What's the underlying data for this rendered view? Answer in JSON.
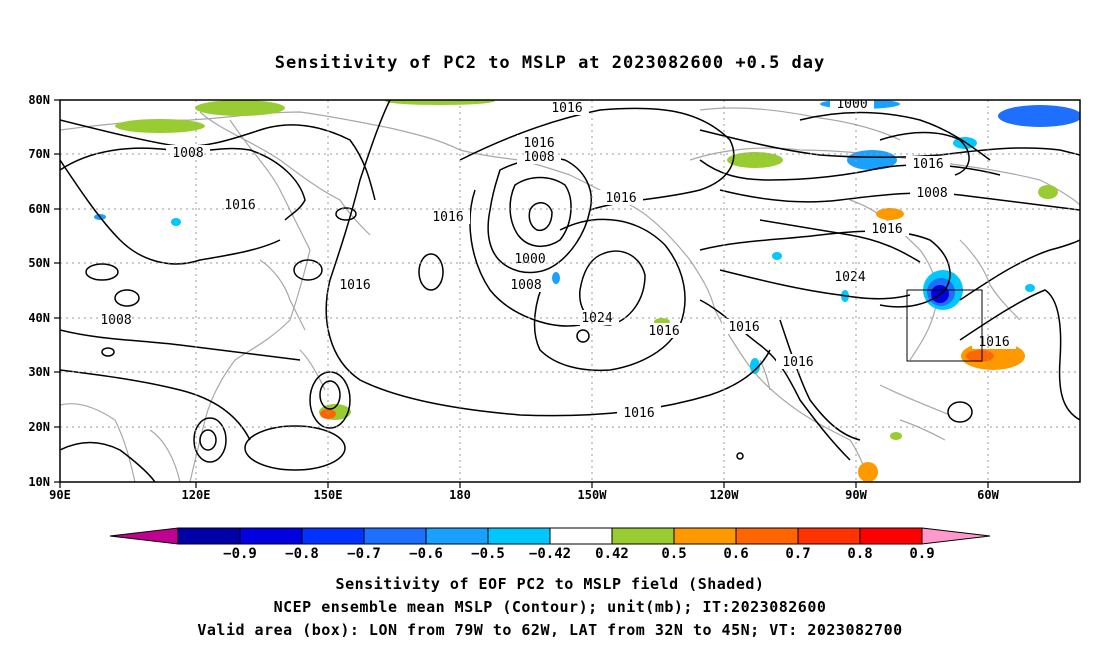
{
  "title": "Sensitivity of PC2 to MSLP at 2023082600 +0.5 day",
  "map": {
    "lon_labels": [
      "90E",
      "120E",
      "150E",
      "180",
      "150W",
      "120W",
      "90W",
      "60W"
    ],
    "lat_labels": [
      "80N",
      "70N",
      "60N",
      "50N",
      "40N",
      "30N",
      "20N",
      "10N"
    ],
    "lon_range": [
      "90E",
      "40W"
    ],
    "lat_range": [
      "10N",
      "80N"
    ],
    "grid": true,
    "contour_labels": [
      "1016",
      "1008",
      "1016",
      "1016",
      "1016",
      "1008",
      "1000",
      "1008",
      "1016",
      "1000",
      "1008",
      "1016",
      "1016",
      "1024",
      "1016",
      "1008",
      "1016",
      "1024",
      "1016",
      "1016",
      "1016",
      "1016"
    ],
    "valid_box": {
      "lon_from": "79W",
      "lon_to": "62W",
      "lat_from": "32N",
      "lat_to": "45N"
    }
  },
  "colorbar": {
    "labels": [
      "−0.9",
      "−0.8",
      "−0.7",
      "−0.6",
      "−0.5",
      "−0.42",
      "0.42",
      "0.5",
      "0.6",
      "0.7",
      "0.8",
      "0.9"
    ],
    "colors": [
      "#c0008f",
      "#0000a8",
      "#0000e0",
      "#0033ff",
      "#1f6fff",
      "#1aa0ff",
      "#00c8ff",
      "#ffffff",
      "#99cc33",
      "#ff9900",
      "#ff6600",
      "#ff3300",
      "#ff0000",
      "#ff99cc"
    ]
  },
  "caption": [
    "Sensitivity of EOF PC2 to MSLP field (Shaded)",
    "NCEP ensemble mean MSLP (Contour); unit(mb); IT:2023082600",
    "Valid area (box): LON from 79W to 62W, LAT from 32N to 45N; VT: 2023082700"
  ]
}
